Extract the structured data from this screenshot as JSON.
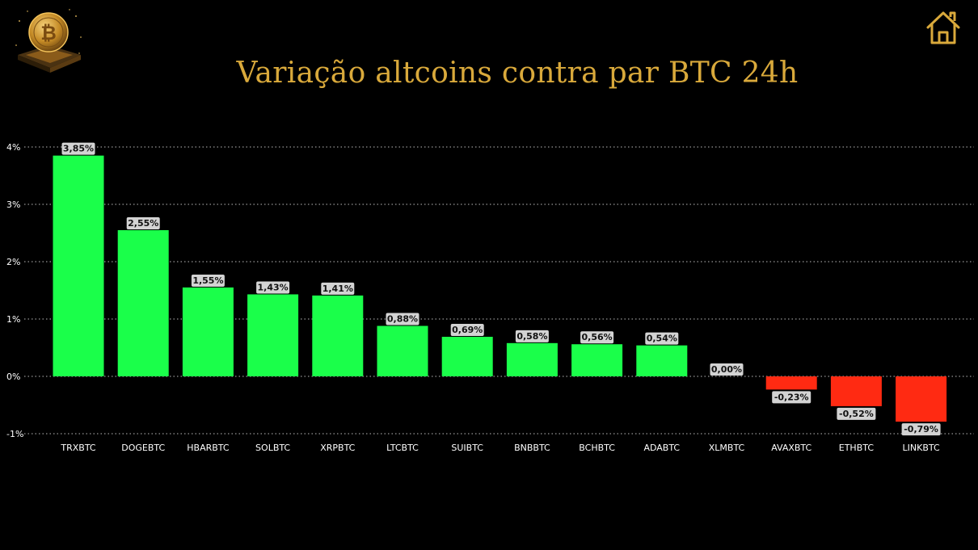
{
  "title": "Variação altcoins contra par BTC 24h",
  "colors": {
    "positive": "#1aff4a",
    "negative": "#ff2a12",
    "title": "#d9a93b",
    "label_bg": "#d3d3d3",
    "grid": "#bbbbbb"
  },
  "icons": {
    "logo": "bitcoin-coin-logo",
    "home": "home-icon"
  },
  "chart_data": {
    "type": "bar",
    "title": "Variação altcoins contra par BTC 24h",
    "xlabel": "",
    "ylabel": "",
    "ylim": [
      -1,
      4
    ],
    "y_ticks": [
      4,
      3,
      2,
      1,
      0,
      -1
    ],
    "y_tick_labels": [
      "4%",
      "3%",
      "2%",
      "1%",
      "0%",
      "-1%"
    ],
    "grid": true,
    "categories": [
      "TRXBTC",
      "DOGEBTC",
      "HBARBTC",
      "SOLBTC",
      "XRPBTC",
      "LTCBTC",
      "SUIBTC",
      "BNBBTC",
      "BCHBTC",
      "ADABTC",
      "XLMBTC",
      "AVAXBTC",
      "ETHBTC",
      "LINKBTC"
    ],
    "values": [
      3.85,
      2.55,
      1.55,
      1.43,
      1.41,
      0.88,
      0.69,
      0.58,
      0.56,
      0.54,
      0.0,
      -0.23,
      -0.52,
      -0.79
    ],
    "data_labels": [
      "3,85%",
      "2,55%",
      "1,55%",
      "1,43%",
      "1,41%",
      "0,88%",
      "0,69%",
      "0,58%",
      "0,56%",
      "0,54%",
      "0,00%",
      "-0,23%",
      "-0,52%",
      "-0,79%"
    ]
  }
}
